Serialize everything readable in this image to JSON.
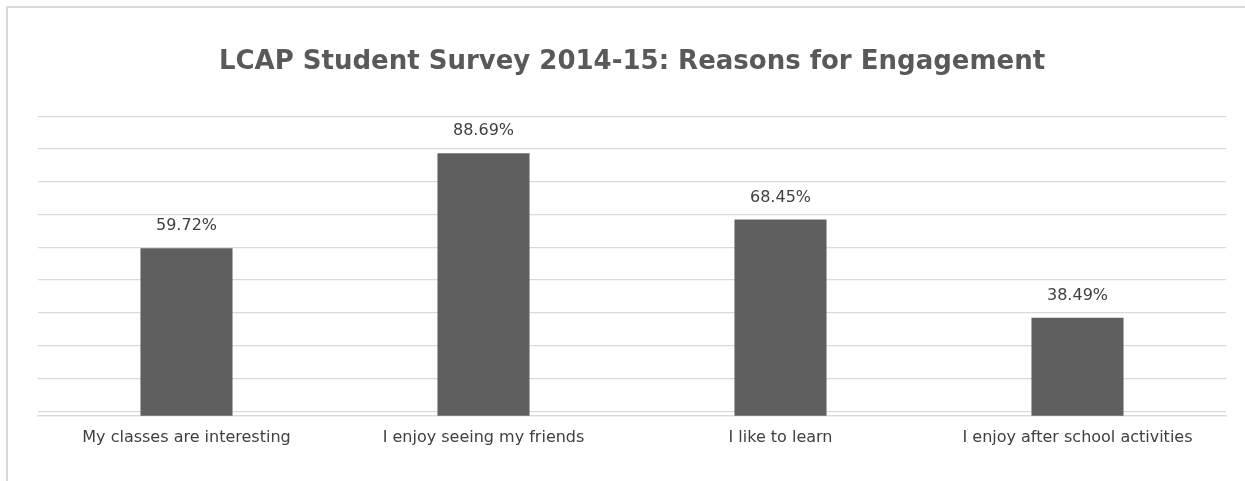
{
  "chart_data": {
    "type": "bar",
    "title": "LCAP Student Survey 2014-15: Reasons for Engagement",
    "categories": [
      "My classes are interesting",
      "I enjoy seeing my friends",
      "I like to learn",
      "I enjoy after school activities"
    ],
    "values": [
      59.72,
      88.69,
      68.45,
      38.49
    ],
    "value_labels": [
      "59.72%",
      "88.69%",
      "68.45%",
      "38.49%"
    ],
    "color": "#5f5f5f",
    "ylim": [
      8.6,
      100
    ],
    "yticks": [
      {
        "value": 10,
        "label": null
      },
      {
        "value": 20,
        "label": null
      },
      {
        "value": 30,
        "label": null
      },
      {
        "value": 40,
        "label": null
      },
      {
        "value": 50,
        "label": null
      },
      {
        "value": 60,
        "label": null
      },
      {
        "value": 70,
        "label": null
      },
      {
        "value": 80,
        "label": null
      },
      {
        "value": 90,
        "label": null
      },
      {
        "value": 100,
        "label": null
      }
    ],
    "tick_labels": "x",
    "grid": "y",
    "legend": false
  }
}
